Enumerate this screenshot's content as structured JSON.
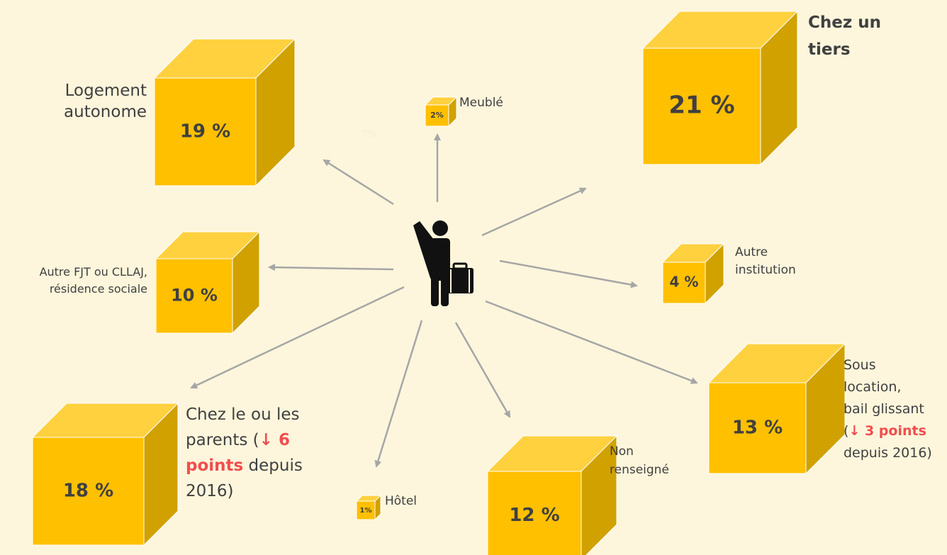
{
  "nodes": [
    {
      "value": "19 %",
      "label_lines": [
        [
          "Logement"
        ],
        [
          "autonome"
        ]
      ]
    },
    {
      "value": "21 %",
      "label_lines": [
        [
          "Chez un"
        ],
        [
          "tiers"
        ]
      ],
      "bold": true
    },
    {
      "value": "2%",
      "label_lines": [
        [
          "Meublé"
        ]
      ]
    },
    {
      "value": "10 %",
      "label_lines": [
        [
          "Autre FJT ou CLLAJ,"
        ],
        [
          "résidence sociale"
        ]
      ]
    },
    {
      "value": "4 %",
      "label_lines": [
        [
          "Autre"
        ],
        [
          "institution"
        ]
      ]
    },
    {
      "value": "13 %",
      "label_lines": [
        [
          "Sous"
        ],
        [
          "location,"
        ],
        [
          "bail glissant"
        ],
        [
          "(",
          {
            "text": "↓ 3 points",
            "emphasis": true
          }
        ],
        [
          "depuis 2016)"
        ]
      ]
    },
    {
      "value": "18 %",
      "label_lines": [
        [
          "Chez le ou les"
        ],
        [
          "parents (",
          {
            "text": "↓ 6",
            "emphasis": true
          }
        ],
        [
          {
            "text": "points",
            "emphasis": true
          },
          " depuis"
        ],
        [
          "2016)"
        ]
      ]
    },
    {
      "value": "1%",
      "label_lines": [
        [
          "Hôtel"
        ]
      ]
    },
    {
      "value": "12 %",
      "label_lines": [
        [
          "Non"
        ],
        [
          "renseigné"
        ]
      ]
    }
  ],
  "stray_label": "7%"
}
